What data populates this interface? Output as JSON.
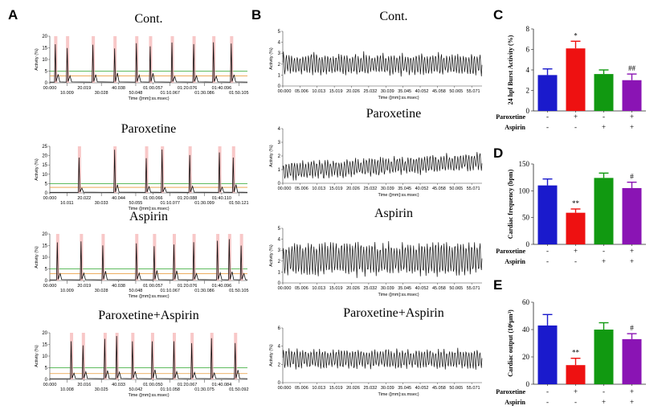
{
  "panels": {
    "A": {
      "letter": "A",
      "x_ticks_top": [
        "00.000",
        "20.019",
        "40.038",
        "01:00.057",
        "01:20.076",
        "01:40.096"
      ],
      "x_ticks_bottom": [
        "10.009",
        "30.028",
        "50.048",
        "01:10.067",
        "01:30.086",
        "01:50.105"
      ],
      "xlabel": "Time ([mm]:ss.msec)",
      "ylabel": "Activity (%)",
      "traces": [
        {
          "title": "Cont.",
          "ylim": [
            0,
            20
          ],
          "yticks": [
            0,
            5,
            10,
            15,
            20
          ],
          "x_ticks_top": [
            "00.000",
            "20.019",
            "40.038",
            "01:00.057",
            "01:20.076",
            "01:40.096"
          ],
          "x_ticks_bottom": [
            "10.009",
            "30.028",
            "50.048",
            "01:10.067",
            "01:30.086",
            "01:50.105"
          ],
          "bursts": [
            0.03,
            0.09,
            0.22,
            0.33,
            0.44,
            0.51,
            0.62,
            0.73,
            0.83,
            0.92
          ],
          "green_line": 5,
          "orange_line": 3
        },
        {
          "title": "Paroxetine",
          "ylim": [
            0,
            25
          ],
          "yticks": [
            0,
            5,
            10,
            15,
            20,
            25
          ],
          "x_ticks_top": [
            "00.000",
            "20.022",
            "40.044",
            "01:00.066",
            "01:20.088",
            "01:40.110"
          ],
          "x_ticks_bottom": [
            "10.011",
            "30.033",
            "50.055",
            "01:10.077",
            "01:30.099",
            "01:50.121"
          ],
          "bursts": [
            0.15,
            0.33,
            0.49,
            0.57,
            0.71,
            0.86,
            0.93
          ],
          "green_line": 5,
          "orange_line": 3
        },
        {
          "title": "Aspirin",
          "ylim": [
            0,
            20
          ],
          "yticks": [
            0,
            5,
            10,
            15,
            20
          ],
          "x_ticks_top": [
            "00.000",
            "20.019",
            "40.038",
            "01:00.057",
            "01:20.076",
            "01:40.096"
          ],
          "x_ticks_bottom": [
            "10.009",
            "30.028",
            "50.048",
            "01:10.067",
            "01:30.086",
            "01:50.105"
          ],
          "bursts": [
            0.04,
            0.16,
            0.27,
            0.44,
            0.53,
            0.63,
            0.73,
            0.85,
            0.91,
            0.97
          ],
          "green_line": 5,
          "orange_line": 3
        },
        {
          "title": "Paroxetine+Aspirin",
          "ylim": [
            0,
            20
          ],
          "yticks": [
            0,
            5,
            10,
            15,
            20
          ],
          "x_ticks_top": [
            "00.000",
            "20.016",
            "40.033",
            "01:00.050",
            "01:20.067",
            "01:40.084"
          ],
          "x_ticks_bottom": [
            "10.008",
            "30.025",
            "50.042",
            "01:10.058",
            "01:30.075",
            "01:50.092"
          ],
          "bursts": [
            0.11,
            0.17,
            0.28,
            0.34,
            0.42,
            0.52,
            0.63,
            0.72,
            0.82,
            0.94
          ],
          "green_line": 5,
          "orange_line": 2.5
        }
      ]
    },
    "B": {
      "letter": "B",
      "x_ticks_top": [
        "00.000",
        "05.006",
        "10.013",
        "15.019",
        "20.026",
        "25.032",
        "30.039",
        "35.045",
        "40.052",
        "45.058",
        "50.065",
        "55.071"
      ],
      "xlabel": "Time ([mm]:ss.msec)",
      "ylabel": "Activity (%)",
      "traces": [
        {
          "title": "Cont.",
          "ylim": [
            0,
            5
          ],
          "yticks": [
            0,
            1,
            2,
            3,
            4,
            5
          ],
          "base": 2.0,
          "amp": 0.9,
          "trend": 0
        },
        {
          "title": "Paroxetine",
          "ylim": [
            0,
            4
          ],
          "yticks": [
            0,
            1,
            2,
            3,
            4
          ],
          "base": 0.9,
          "amp": 0.6,
          "trend": 0.7
        },
        {
          "title": "Aspirin",
          "ylim": [
            0,
            5
          ],
          "yticks": [
            0,
            1,
            2,
            3,
            4,
            5
          ],
          "base": 2.2,
          "amp": 1.4,
          "trend": 0
        },
        {
          "title": "Paroxetine+Aspirin",
          "ylim": [
            0,
            6
          ],
          "yticks": [
            0,
            2,
            4,
            6
          ],
          "base": 2.6,
          "amp": 1.0,
          "trend": 0
        }
      ]
    }
  },
  "chart_data": [
    {
      "panel": "C",
      "type": "bar",
      "ylabel": "24 hpf Burst Activity (%)",
      "ylim": [
        0,
        8
      ],
      "yticks": [
        0,
        2,
        4,
        6,
        8
      ],
      "categories": [
        "Cont.",
        "Paroxetine",
        "Aspirin",
        "Paroxetine+Aspirin"
      ],
      "values": [
        3.5,
        6.1,
        3.6,
        3.0
      ],
      "errors": [
        0.6,
        0.7,
        0.4,
        0.6
      ],
      "significance": [
        "",
        "*",
        "",
        "##"
      ],
      "colors": [
        "#1a1acc",
        "#ee1111",
        "#119911",
        "#8a14b4"
      ],
      "treatment_rows": [
        {
          "label": "Paroxetine",
          "marks": [
            "-",
            "+",
            "-",
            "+"
          ]
        },
        {
          "label": "Aspirin",
          "marks": [
            "-",
            "-",
            "+",
            "+"
          ]
        }
      ]
    },
    {
      "panel": "D",
      "type": "bar",
      "ylabel": "Cardiac frequency (bpm)",
      "ylim": [
        0,
        150
      ],
      "yticks": [
        0,
        50,
        100,
        150
      ],
      "categories": [
        "Cont.",
        "Paroxetine",
        "Aspirin",
        "Paroxetine+Aspirin"
      ],
      "values": [
        110,
        59,
        124,
        105
      ],
      "errors": [
        12,
        7,
        9,
        11
      ],
      "significance": [
        "",
        "**",
        "",
        "#"
      ],
      "colors": [
        "#1a1acc",
        "#ee1111",
        "#119911",
        "#8a14b4"
      ],
      "treatment_rows": [
        {
          "label": "Paroxetine",
          "marks": [
            "-",
            "+",
            "-",
            "+"
          ]
        },
        {
          "label": "Aspirin",
          "marks": [
            "-",
            "-",
            "+",
            "+"
          ]
        }
      ]
    },
    {
      "panel": "E",
      "type": "bar",
      "ylabel": "Cardiac output (10⁶μm³)",
      "ylim": [
        0,
        60
      ],
      "yticks": [
        0,
        20,
        40,
        60
      ],
      "categories": [
        "Cont.",
        "Paroxetine",
        "Aspirin",
        "Paroxetine+Aspirin"
      ],
      "values": [
        43,
        14,
        40,
        33
      ],
      "errors": [
        8,
        5,
        5,
        4
      ],
      "significance": [
        "",
        "**",
        "",
        "#"
      ],
      "colors": [
        "#1a1acc",
        "#ee1111",
        "#119911",
        "#8a14b4"
      ],
      "treatment_rows": [
        {
          "label": "Paroxetine",
          "marks": [
            "-",
            "+",
            "-",
            "+"
          ]
        },
        {
          "label": "Aspirin",
          "marks": [
            "-",
            "-",
            "+",
            "+"
          ]
        }
      ]
    }
  ]
}
